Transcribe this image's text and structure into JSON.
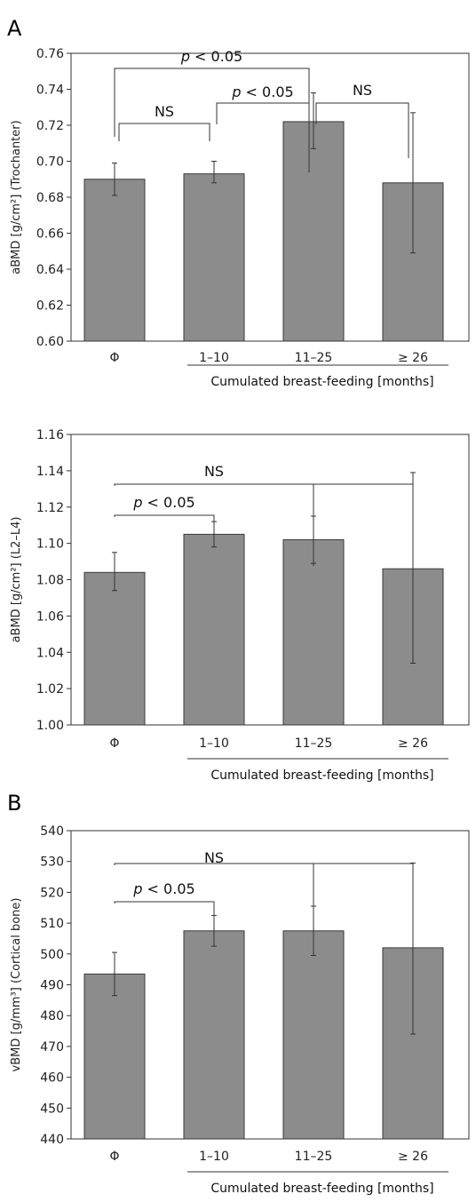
{
  "panel_letters": [
    "A",
    "B"
  ],
  "chart_data": [
    {
      "type": "bar",
      "categories": [
        "Φ",
        "1–10",
        "11–25",
        "≥ 26"
      ],
      "values": [
        0.69,
        0.693,
        0.722,
        0.688
      ],
      "errors": [
        [
          0.681,
          0.699
        ],
        [
          0.688,
          0.7
        ],
        [
          0.707,
          0.738
        ],
        [
          0.649,
          0.727
        ]
      ],
      "ylabel": "aBMD [g/cm²] (Trochanter)",
      "xlabel": "Cumulated breast-feeding [months]",
      "ylim": [
        0.6,
        0.76
      ],
      "yticks": [
        "0.60",
        "0.62",
        "0.64",
        "0.66",
        "0.68",
        "0.70",
        "0.72",
        "0.74",
        "0.76"
      ],
      "annotations": [
        {
          "text": "NS",
          "pair": [
            0,
            1
          ]
        },
        {
          "text": "p < 0.05",
          "pair": [
            1,
            2
          ]
        },
        {
          "text": "NS",
          "pair": [
            2,
            3
          ]
        },
        {
          "text": "p < 0.05",
          "pair": [
            0,
            2
          ]
        }
      ]
    },
    {
      "type": "bar",
      "categories": [
        "Φ",
        "1–10",
        "11–25",
        "≥ 26"
      ],
      "values": [
        1.084,
        1.105,
        1.102,
        1.086
      ],
      "errors": [
        [
          1.074,
          1.095
        ],
        [
          1.098,
          1.112
        ],
        [
          1.089,
          1.115
        ],
        [
          1.034,
          1.139
        ]
      ],
      "ylabel": "aBMD [g/cm²] (L2–L4)",
      "xlabel": "Cumulated breast-feeding [months]",
      "ylim": [
        1.0,
        1.16
      ],
      "yticks": [
        "1.00",
        "1.02",
        "1.04",
        "1.06",
        "1.08",
        "1.10",
        "1.12",
        "1.14",
        "1.16"
      ],
      "annotations": [
        {
          "text": "p < 0.05",
          "pair": [
            0,
            1
          ]
        },
        {
          "text": "NS",
          "pair": [
            0,
            2
          ]
        },
        {
          "text": "",
          "pair": [
            0,
            3
          ]
        }
      ]
    },
    {
      "type": "bar",
      "categories": [
        "Φ",
        "1–10",
        "11–25",
        "≥ 26"
      ],
      "values": [
        493.5,
        507.5,
        507.5,
        502.0
      ],
      "errors": [
        [
          486.5,
          500.5
        ],
        [
          502.5,
          512.5
        ],
        [
          499.5,
          515.5
        ],
        [
          474.0,
          529.5
        ]
      ],
      "ylabel": "vBMD [g/mm³] (Cortical bone)",
      "xlabel": "Cumulated breast-feeding [months]",
      "ylim": [
        440,
        540
      ],
      "yticks": [
        "440",
        "450",
        "460",
        "470",
        "480",
        "490",
        "500",
        "510",
        "520",
        "530",
        "540"
      ],
      "annotations": [
        {
          "text": "p < 0.05",
          "pair": [
            0,
            1
          ]
        },
        {
          "text": "NS",
          "pair": [
            0,
            2
          ]
        },
        {
          "text": "",
          "pair": [
            0,
            3
          ]
        }
      ]
    }
  ]
}
